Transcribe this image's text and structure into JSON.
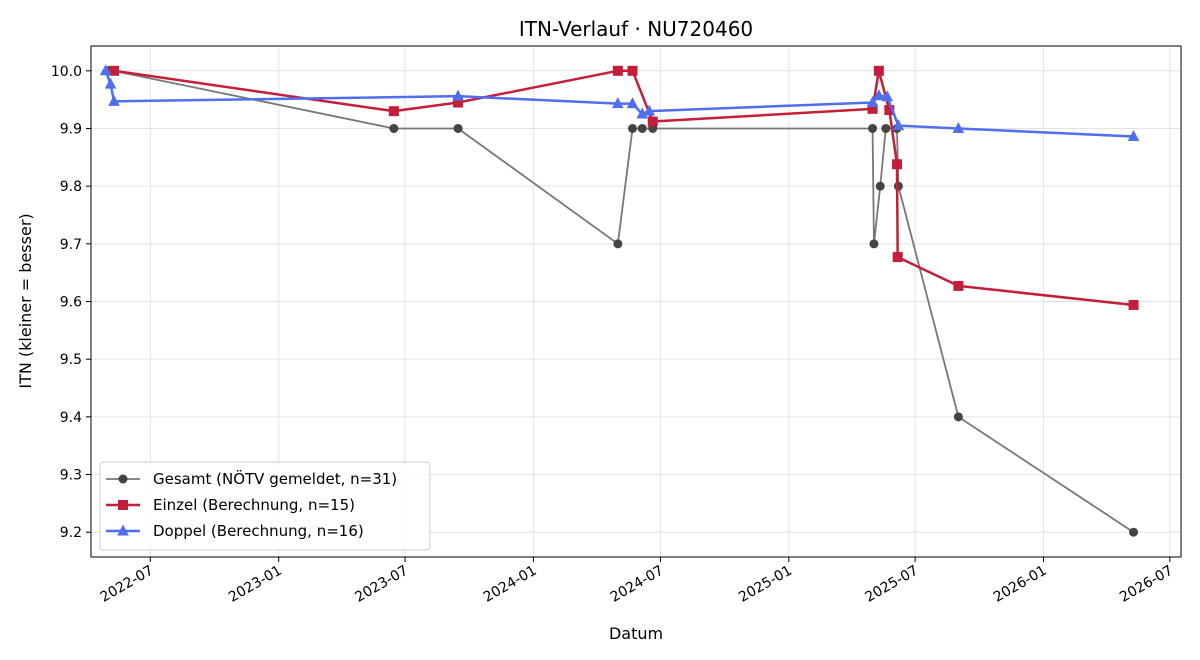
{
  "chart_data": {
    "type": "line",
    "title": "ITN-Verlauf · NU720460",
    "xlabel": "Datum",
    "ylabel": "ITN  (kleiner = besser)",
    "x_type": "date",
    "xlim": [
      "2022-04-07",
      "2026-07-17"
    ],
    "ylim": [
      9.157,
      10.043
    ],
    "y_ticks": [
      9.2,
      9.3,
      9.4,
      9.5,
      9.6,
      9.7,
      9.8,
      9.9,
      10.0
    ],
    "y_tick_labels": [
      "9.2",
      "9.3",
      "9.4",
      "9.5",
      "9.6",
      "9.7",
      "9.8",
      "9.9",
      "10.0"
    ],
    "x_ticks": [
      "2022-07-01",
      "2023-01-01",
      "2023-07-01",
      "2024-01-01",
      "2024-07-01",
      "2025-01-01",
      "2025-07-01",
      "2026-01-01",
      "2026-07-01"
    ],
    "x_tick_labels": [
      "2022-07",
      "2023-01",
      "2023-07",
      "2024-01",
      "2024-07",
      "2025-01",
      "2025-07",
      "2026-01",
      "2026-07"
    ],
    "grid": true,
    "legend_position": "lower-left",
    "series": [
      {
        "name": "Gesamt (NÖTV gemeldet, n=31)",
        "color": "#555555",
        "marker": "circle",
        "points": [
          [
            "2022-05-01",
            10.0
          ],
          [
            "2022-05-03",
            10.0
          ],
          [
            "2022-05-06",
            10.0
          ],
          [
            "2022-05-09",
            10.0
          ],
          [
            "2023-06-15",
            9.9
          ],
          [
            "2023-09-15",
            9.9
          ],
          [
            "2024-05-01",
            9.7
          ],
          [
            "2024-05-22",
            9.9
          ],
          [
            "2024-06-05",
            9.9
          ],
          [
            "2024-06-20",
            9.9
          ],
          [
            "2025-05-01",
            9.9
          ],
          [
            "2025-05-03",
            9.7
          ],
          [
            "2025-05-12",
            9.8
          ],
          [
            "2025-05-20",
            9.9
          ],
          [
            "2025-06-05",
            9.9
          ],
          [
            "2025-06-07",
            9.8
          ],
          [
            "2025-09-01",
            9.4
          ],
          [
            "2026-05-10",
            9.2
          ]
        ]
      },
      {
        "name": "Einzel (Berechnung, n=15)",
        "color": "#c41e3a",
        "marker": "square",
        "points": [
          [
            "2022-05-10",
            10.0
          ],
          [
            "2023-06-15",
            9.93
          ],
          [
            "2023-09-15",
            9.945
          ],
          [
            "2024-05-01",
            10.0
          ],
          [
            "2024-05-22",
            10.0
          ],
          [
            "2024-06-20",
            9.912
          ],
          [
            "2025-05-01",
            9.934
          ],
          [
            "2025-05-10",
            10.0
          ],
          [
            "2025-05-25",
            9.932
          ],
          [
            "2025-06-05",
            9.838
          ],
          [
            "2025-06-06",
            9.677
          ],
          [
            "2025-09-01",
            9.627
          ],
          [
            "2026-05-10",
            9.594
          ]
        ]
      },
      {
        "name": "Doppel (Berechnung, n=16)",
        "color": "#4f6ff0",
        "marker": "triangle",
        "points": [
          [
            "2022-04-28",
            10.0
          ],
          [
            "2022-05-05",
            9.977
          ],
          [
            "2022-05-10",
            9.947
          ],
          [
            "2023-09-15",
            9.956
          ],
          [
            "2024-05-01",
            9.943
          ],
          [
            "2024-05-22",
            9.943
          ],
          [
            "2024-06-05",
            9.925
          ],
          [
            "2024-06-15",
            9.93
          ],
          [
            "2025-05-01",
            9.945
          ],
          [
            "2025-05-10",
            9.957
          ],
          [
            "2025-05-22",
            9.955
          ],
          [
            "2025-06-07",
            9.905
          ],
          [
            "2025-09-01",
            9.9
          ],
          [
            "2026-05-10",
            9.886
          ]
        ]
      }
    ]
  }
}
